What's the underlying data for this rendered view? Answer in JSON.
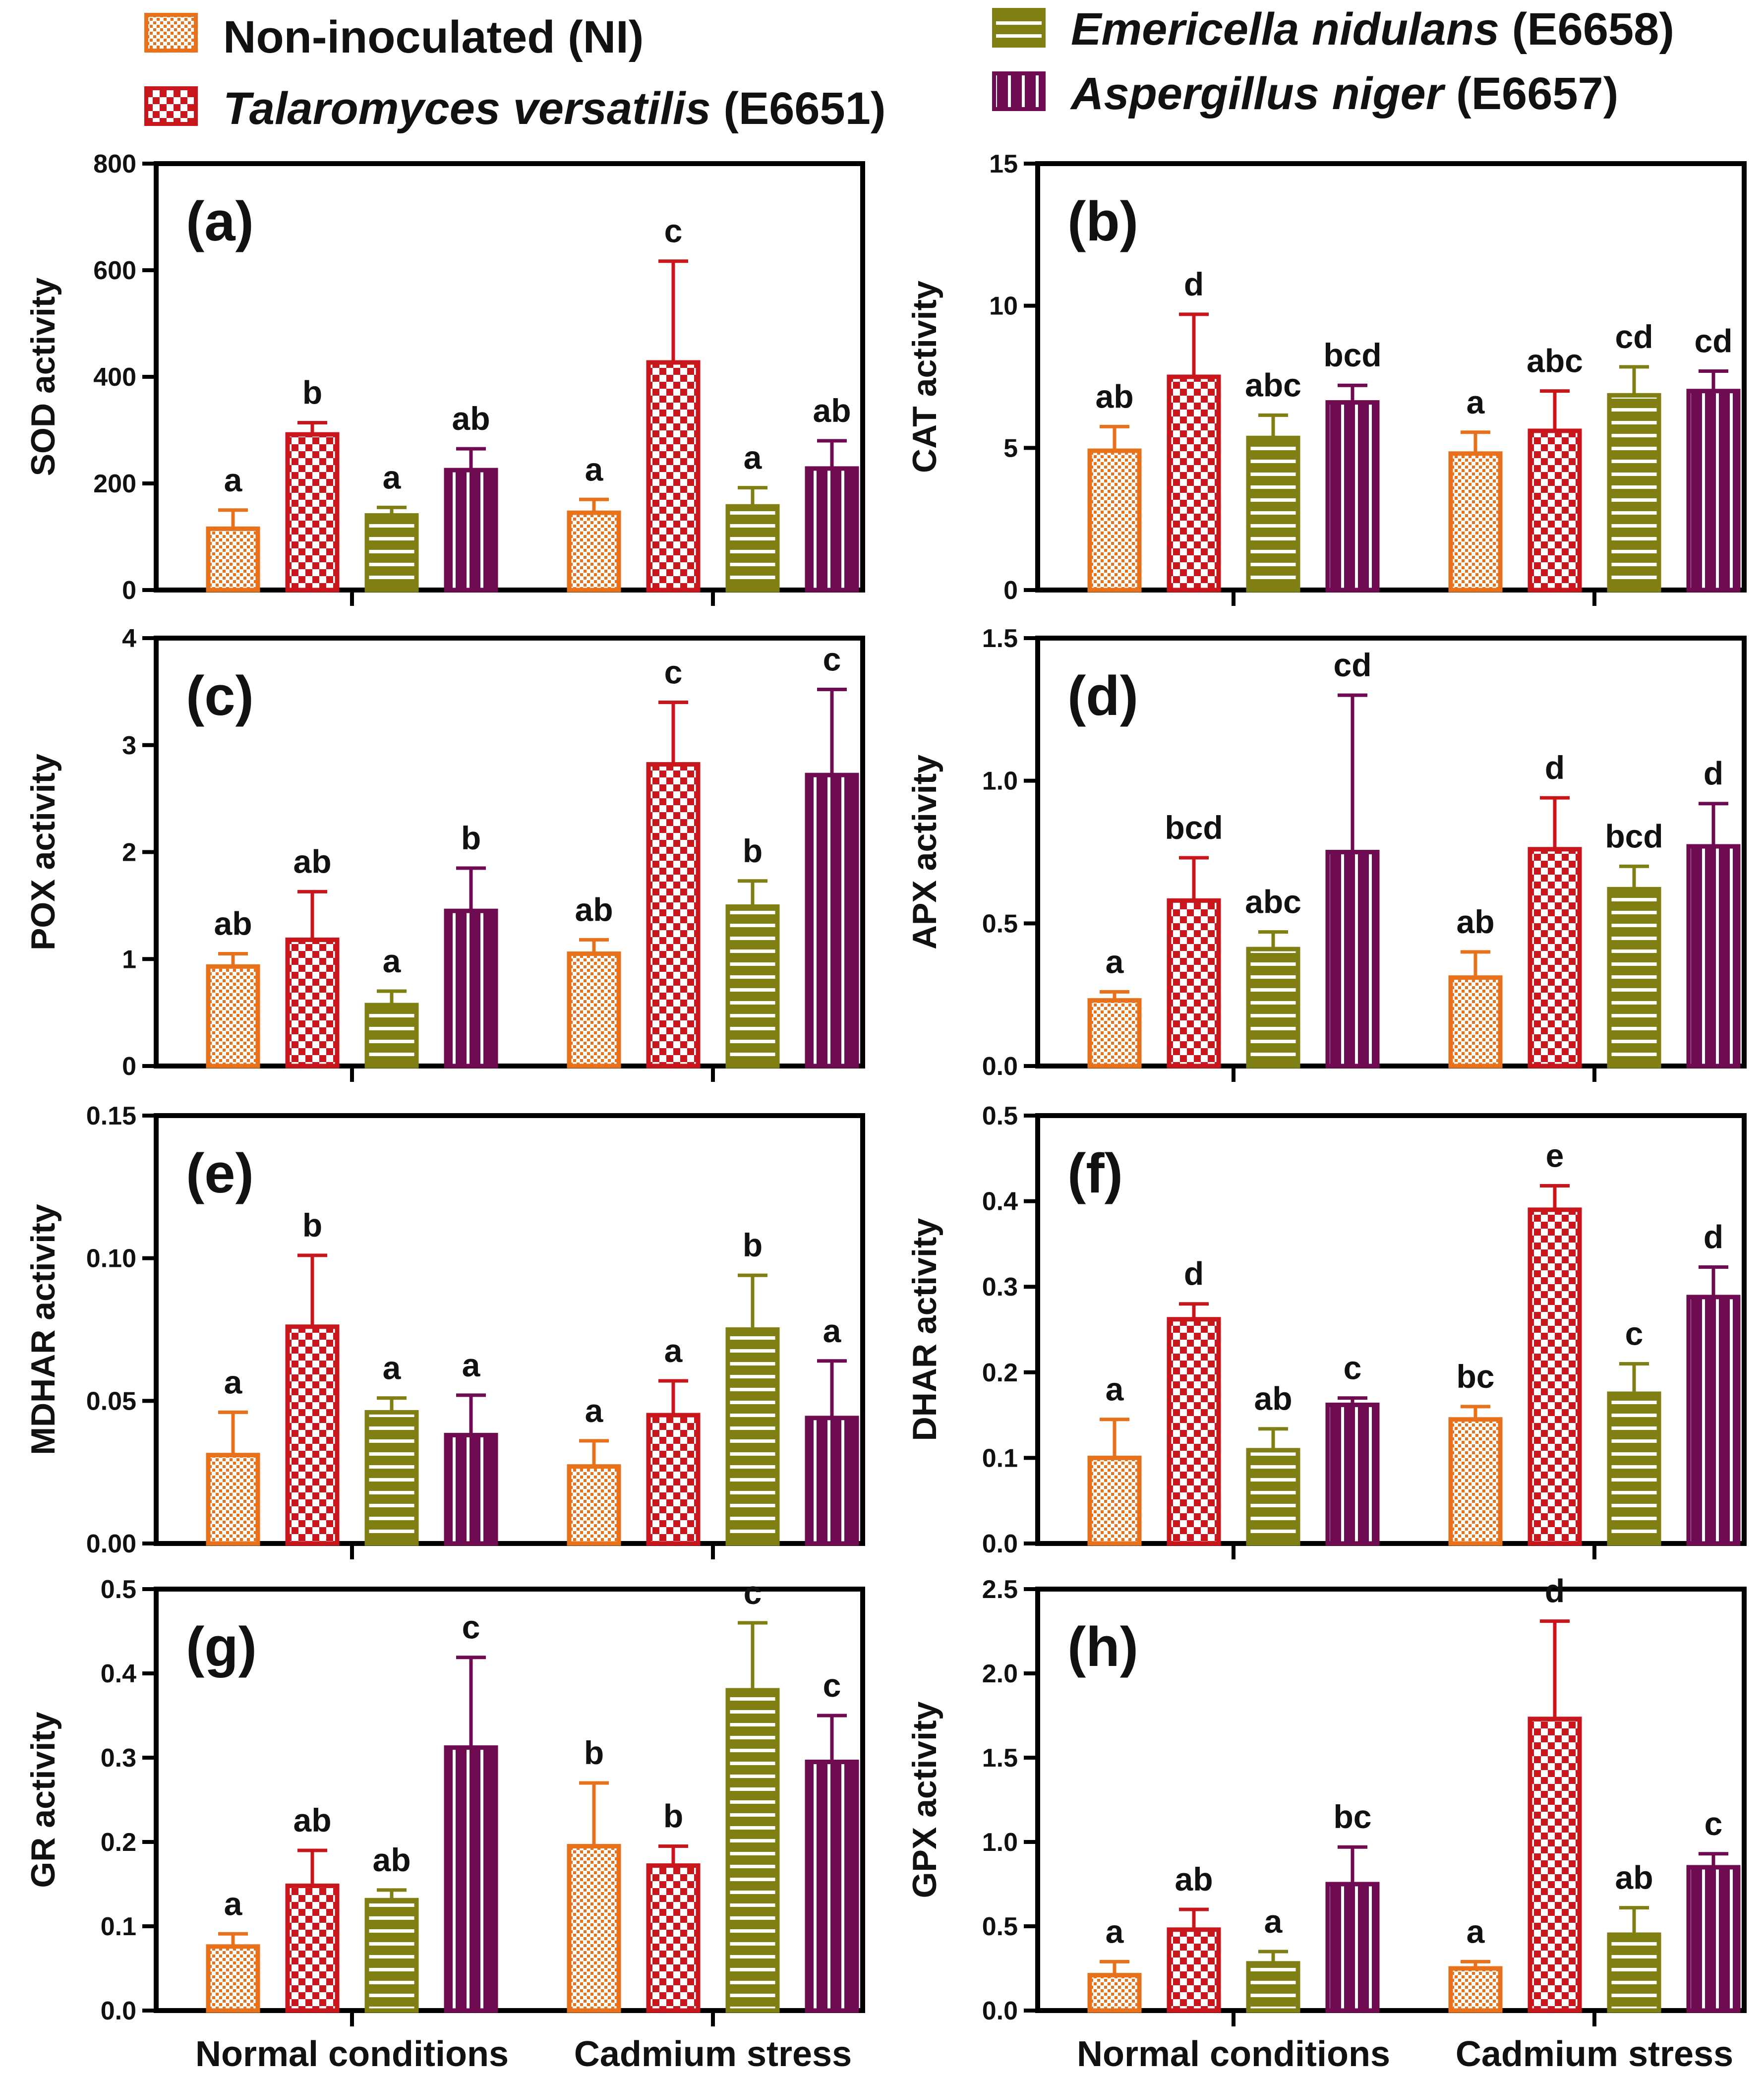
{
  "legend": [
    {
      "italic": "",
      "plain": "Non-inoculated (NI)",
      "pattern": "dots"
    },
    {
      "italic": "Talaromyces versatilis",
      "plain": " (E6651)",
      "pattern": "checker"
    },
    {
      "italic": "Emericella nidulans",
      "plain": " (E6658)",
      "pattern": "hlines"
    },
    {
      "italic": "Aspergillus niger",
      "plain": " (E6657)",
      "pattern": "vlines"
    }
  ],
  "colors": {
    "NI": "#e8721c",
    "E6651": "#c8161d",
    "E6658": "#7f7f14",
    "E6657": "#6e0b51"
  },
  "chart_data": [
    {
      "tag": "(a)",
      "type": "bar",
      "ylabel": "SOD activity",
      "ylim": [
        0,
        800
      ],
      "yticks": [
        "0",
        "200",
        "400",
        "600",
        "800"
      ],
      "categories": [
        "Normal conditions",
        "Cadmium stress"
      ],
      "series": [
        {
          "name": "Non-inoculated (NI)",
          "values": [
            115,
            145
          ],
          "errors": [
            35,
            25
          ],
          "letters": [
            "a",
            "a"
          ]
        },
        {
          "name": "Talaromyces versatilis (E6651)",
          "values": [
            292,
            427
          ],
          "errors": [
            22,
            190
          ],
          "letters": [
            "b",
            "c"
          ]
        },
        {
          "name": "Emericella nidulans (E6658)",
          "values": [
            140,
            157
          ],
          "errors": [
            15,
            35
          ],
          "letters": [
            "a",
            "a"
          ]
        },
        {
          "name": "Aspergillus niger (E6657)",
          "values": [
            225,
            228
          ],
          "errors": [
            40,
            52
          ],
          "letters": [
            "ab",
            "ab"
          ]
        }
      ]
    },
    {
      "tag": "(b)",
      "type": "bar",
      "ylabel": "CAT activity",
      "ylim": [
        0,
        15
      ],
      "yticks": [
        "0",
        "5",
        "10",
        "15"
      ],
      "categories": [
        "Normal conditions",
        "Cadmium stress"
      ],
      "series": [
        {
          "name": "Non-inoculated (NI)",
          "values": [
            4.9,
            4.8
          ],
          "errors": [
            0.85,
            0.75
          ],
          "letters": [
            "ab",
            "a"
          ]
        },
        {
          "name": "Talaromyces versatilis (E6651)",
          "values": [
            7.5,
            5.6
          ],
          "errors": [
            2.2,
            1.4
          ],
          "letters": [
            "d",
            "abc"
          ]
        },
        {
          "name": "Emericella nidulans (E6658)",
          "values": [
            5.35,
            6.85
          ],
          "errors": [
            0.8,
            1.0
          ],
          "letters": [
            "abc",
            "cd"
          ]
        },
        {
          "name": "Aspergillus niger (E6657)",
          "values": [
            6.6,
            7.0
          ],
          "errors": [
            0.6,
            0.7
          ],
          "letters": [
            "bcd",
            "cd"
          ]
        }
      ]
    },
    {
      "tag": "(c)",
      "type": "bar",
      "ylabel": "POX activity",
      "ylim": [
        0,
        4
      ],
      "yticks": [
        "0",
        "1",
        "2",
        "3",
        "4"
      ],
      "categories": [
        "Normal conditions",
        "Cadmium stress"
      ],
      "series": [
        {
          "name": "Non-inoculated (NI)",
          "values": [
            0.93,
            1.05
          ],
          "errors": [
            0.12,
            0.13
          ],
          "letters": [
            "ab",
            "ab"
          ]
        },
        {
          "name": "Talaromyces versatilis (E6651)",
          "values": [
            1.18,
            2.82
          ],
          "errors": [
            0.45,
            0.58
          ],
          "letters": [
            "ab",
            "c"
          ]
        },
        {
          "name": "Emericella nidulans (E6658)",
          "values": [
            0.57,
            1.49
          ],
          "errors": [
            0.13,
            0.24
          ],
          "letters": [
            "a",
            "b"
          ]
        },
        {
          "name": "Aspergillus niger (E6657)",
          "values": [
            1.45,
            2.72
          ],
          "errors": [
            0.4,
            0.8
          ],
          "letters": [
            "b",
            "c"
          ]
        }
      ]
    },
    {
      "tag": "(d)",
      "type": "bar",
      "ylabel": "APX activity",
      "ylim": [
        0,
        1.5
      ],
      "yticks": [
        "0.0",
        "0.5",
        "1.0",
        "1.5"
      ],
      "categories": [
        "Normal conditions",
        "Cadmium stress"
      ],
      "series": [
        {
          "name": "Non-inoculated (NI)",
          "values": [
            0.23,
            0.31
          ],
          "errors": [
            0.03,
            0.09
          ],
          "letters": [
            "a",
            "ab"
          ]
        },
        {
          "name": "Talaromyces versatilis (E6651)",
          "values": [
            0.58,
            0.76
          ],
          "errors": [
            0.15,
            0.18
          ],
          "letters": [
            "bcd",
            "d"
          ]
        },
        {
          "name": "Emericella nidulans (E6658)",
          "values": [
            0.41,
            0.62
          ],
          "errors": [
            0.06,
            0.08
          ],
          "letters": [
            "abc",
            "bcd"
          ]
        },
        {
          "name": "Aspergillus niger (E6657)",
          "values": [
            0.75,
            0.77
          ],
          "errors": [
            0.55,
            0.15
          ],
          "letters": [
            "cd",
            "d"
          ]
        }
      ]
    },
    {
      "tag": "(e)",
      "type": "bar",
      "ylabel": "MDHAR activity",
      "ylim": [
        0,
        0.15
      ],
      "yticks": [
        "0.00",
        "0.05",
        "0.10",
        "0.15"
      ],
      "categories": [
        "Normal conditions",
        "Cadmium stress"
      ],
      "series": [
        {
          "name": "Non-inoculated (NI)",
          "values": [
            0.031,
            0.027
          ],
          "errors": [
            0.015,
            0.009
          ],
          "letters": [
            "a",
            "a"
          ]
        },
        {
          "name": "Talaromyces versatilis (E6651)",
          "values": [
            0.076,
            0.045
          ],
          "errors": [
            0.025,
            0.012
          ],
          "letters": [
            "b",
            "a"
          ]
        },
        {
          "name": "Emericella nidulans (E6658)",
          "values": [
            0.046,
            0.075
          ],
          "errors": [
            0.005,
            0.019
          ],
          "letters": [
            "a",
            "b"
          ]
        },
        {
          "name": "Aspergillus niger (E6657)",
          "values": [
            0.038,
            0.044
          ],
          "errors": [
            0.014,
            0.02
          ],
          "letters": [
            "a",
            "a"
          ]
        }
      ]
    },
    {
      "tag": "(f)",
      "type": "bar",
      "ylabel": "DHAR activity",
      "ylim": [
        0,
        0.5
      ],
      "yticks": [
        "0.0",
        "0.1",
        "0.2",
        "0.3",
        "0.4",
        "0.5"
      ],
      "categories": [
        "Normal conditions",
        "Cadmium stress"
      ],
      "series": [
        {
          "name": "Non-inoculated (NI)",
          "values": [
            0.1,
            0.145
          ],
          "errors": [
            0.045,
            0.015
          ],
          "letters": [
            "a",
            "bc"
          ]
        },
        {
          "name": "Talaromyces versatilis (E6651)",
          "values": [
            0.262,
            0.39
          ],
          "errors": [
            0.018,
            0.028
          ],
          "letters": [
            "d",
            "e"
          ]
        },
        {
          "name": "Emericella nidulans (E6658)",
          "values": [
            0.109,
            0.175
          ],
          "errors": [
            0.025,
            0.035
          ],
          "letters": [
            "ab",
            "c"
          ]
        },
        {
          "name": "Aspergillus niger (E6657)",
          "values": [
            0.162,
            0.288
          ],
          "errors": [
            0.008,
            0.035
          ],
          "letters": [
            "c",
            "d"
          ]
        }
      ]
    },
    {
      "tag": "(g)",
      "type": "bar",
      "ylabel": "GR activity",
      "ylim": [
        0,
        0.5
      ],
      "yticks": [
        "0.0",
        "0.1",
        "0.2",
        "0.3",
        "0.4",
        "0.5"
      ],
      "categories": [
        "Normal conditions",
        "Cadmium stress"
      ],
      "series": [
        {
          "name": "Non-inoculated (NI)",
          "values": [
            0.076,
            0.195
          ],
          "errors": [
            0.015,
            0.075
          ],
          "letters": [
            "a",
            "b"
          ]
        },
        {
          "name": "Talaromyces versatilis (E6651)",
          "values": [
            0.148,
            0.172
          ],
          "errors": [
            0.042,
            0.023
          ],
          "letters": [
            "ab",
            "b"
          ]
        },
        {
          "name": "Emericella nidulans (E6658)",
          "values": [
            0.131,
            0.38
          ],
          "errors": [
            0.012,
            0.08
          ],
          "letters": [
            "ab",
            "c"
          ]
        },
        {
          "name": "Aspergillus niger (E6657)",
          "values": [
            0.312,
            0.295
          ],
          "errors": [
            0.107,
            0.055
          ],
          "letters": [
            "c",
            "c"
          ]
        }
      ]
    },
    {
      "tag": "(h)",
      "type": "bar",
      "ylabel": "GPX activity",
      "ylim": [
        0,
        2.5
      ],
      "yticks": [
        "0.0",
        "0.5",
        "1.0",
        "1.5",
        "2.0",
        "2.5"
      ],
      "categories": [
        "Normal conditions",
        "Cadmium stress"
      ],
      "series": [
        {
          "name": "Non-inoculated (NI)",
          "values": [
            0.21,
            0.25
          ],
          "errors": [
            0.08,
            0.04
          ],
          "letters": [
            "a",
            "a"
          ]
        },
        {
          "name": "Talaromyces versatilis (E6651)",
          "values": [
            0.48,
            1.73
          ],
          "errors": [
            0.12,
            0.58
          ],
          "letters": [
            "ab",
            "d"
          ]
        },
        {
          "name": "Emericella nidulans (E6658)",
          "values": [
            0.28,
            0.45
          ],
          "errors": [
            0.07,
            0.16
          ],
          "letters": [
            "a",
            "ab"
          ]
        },
        {
          "name": "Aspergillus niger (E6657)",
          "values": [
            0.75,
            0.85
          ],
          "errors": [
            0.22,
            0.08
          ],
          "letters": [
            "bc",
            "c"
          ]
        }
      ]
    }
  ]
}
